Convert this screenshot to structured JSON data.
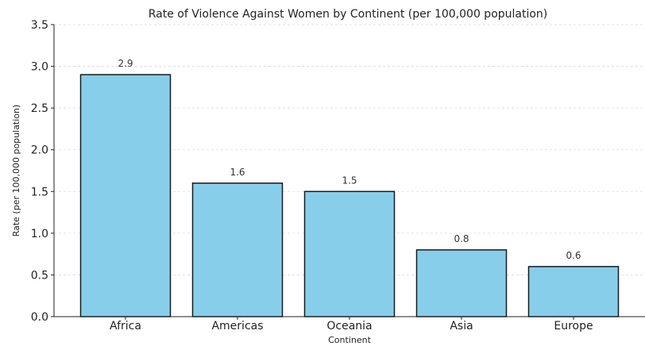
{
  "chart_data": {
    "type": "bar",
    "title": "Rate of Violence Against Women by Continent (per 100,000 population)",
    "xlabel": "Continent",
    "ylabel": "Rate (per 100,000 population)",
    "categories": [
      "Africa",
      "Americas",
      "Oceania",
      "Asia",
      "Europe"
    ],
    "values": [
      2.9,
      1.6,
      1.5,
      0.8,
      0.6
    ],
    "data_labels": [
      "2.9",
      "1.6",
      "1.5",
      "0.8",
      "0.6"
    ],
    "ylim": [
      0,
      3.5
    ],
    "yticks": [
      "0.0",
      "0.5",
      "1.0",
      "1.5",
      "2.0",
      "2.5",
      "3.0",
      "3.5"
    ],
    "grid": true,
    "bar_color": "#87CEEB",
    "bar_edge_color": "#1a1a1a"
  }
}
